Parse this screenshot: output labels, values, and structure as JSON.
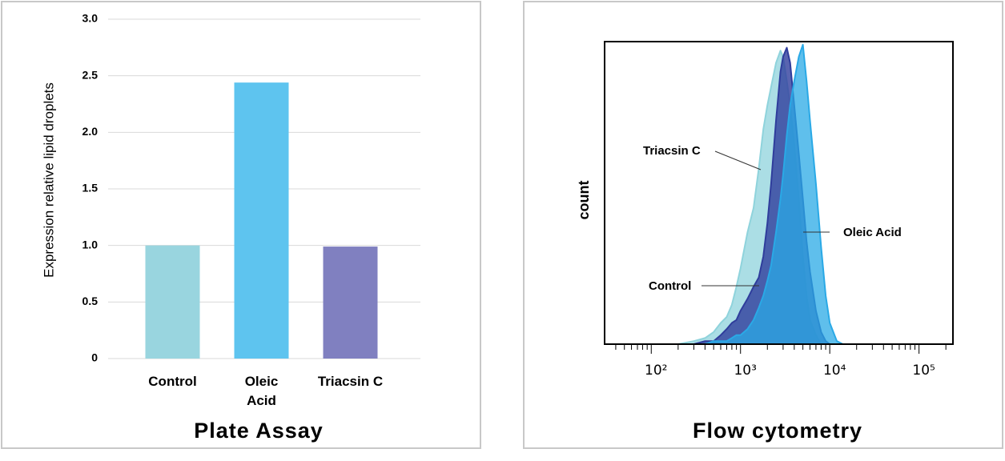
{
  "chart_data": [
    {
      "type": "bar",
      "title": "Plate Assay",
      "ylabel": "Expression relative lipid droplets",
      "categories": [
        "Control",
        "Oleic Acid",
        "Triacsin C"
      ],
      "values": [
        1.0,
        2.44,
        0.99
      ],
      "colors": [
        "#99d5df",
        "#5ec4ef",
        "#8080c0"
      ],
      "ylim": [
        0,
        3
      ],
      "yticks": [
        0,
        0.5,
        {
          "value": 1,
          "label": "1.0"
        },
        1.5,
        {
          "value": 2,
          "label": "2.0"
        },
        2.5,
        {
          "value": 3,
          "label": "3.0"
        }
      ],
      "grid": true
    },
    {
      "type": "histogram",
      "title": "Flow cytometry",
      "ylabel": "count",
      "xscale": "log",
      "xlim": [
        30,
        240000
      ],
      "ylim": [
        0,
        100
      ],
      "xticks": [
        {
          "value": 100,
          "label": "10²"
        },
        {
          "value": 1000,
          "label": "10³"
        },
        {
          "value": 10000,
          "label": "10⁴"
        },
        {
          "value": 100000,
          "label": "10⁵"
        }
      ],
      "xminorticks": [
        40,
        50,
        60,
        70,
        80,
        90,
        200,
        300,
        400,
        500,
        600,
        700,
        800,
        900,
        2000,
        3000,
        4000,
        5000,
        6000,
        7000,
        8000,
        9000,
        20000,
        30000,
        40000,
        50000,
        60000,
        70000,
        80000,
        90000,
        200000
      ],
      "x": [
        200,
        300,
        400,
        500,
        600,
        700,
        800,
        900,
        1000,
        1200,
        1400,
        1600,
        1800,
        2000,
        2200,
        2500,
        2800,
        3000,
        3300,
        3600,
        4000,
        4500,
        5000,
        5500,
        6000,
        7000,
        8000,
        9000,
        10000,
        12000,
        14000
      ],
      "series": [
        {
          "name": "Triacsin C",
          "color": "#8fd3dc",
          "values": [
            0,
            1,
            2,
            4,
            7,
            9,
            13,
            19,
            25,
            37,
            45,
            58,
            71,
            79,
            85,
            93,
            97,
            95,
            87,
            79,
            66,
            48,
            29,
            16,
            8,
            3,
            0,
            0,
            0,
            0,
            0
          ]
        },
        {
          "name": "Control",
          "color": "#2f3d9c",
          "values": [
            0,
            0,
            1,
            1,
            3,
            5,
            7,
            8,
            11,
            15,
            19,
            22,
            29,
            40,
            53,
            74,
            90,
            95,
            98,
            93,
            79,
            63,
            48,
            34,
            24,
            11,
            4,
            1,
            0,
            0,
            0
          ]
        },
        {
          "name": "Oleic Acid",
          "color": "#2aa9e6",
          "values": [
            0,
            0,
            0,
            1,
            1,
            1,
            2,
            3,
            3,
            5,
            8,
            12,
            16,
            21,
            26,
            37,
            48,
            56,
            69,
            79,
            87,
            95,
            99,
            87,
            74,
            53,
            32,
            16,
            7,
            1,
            0
          ]
        }
      ]
    }
  ]
}
